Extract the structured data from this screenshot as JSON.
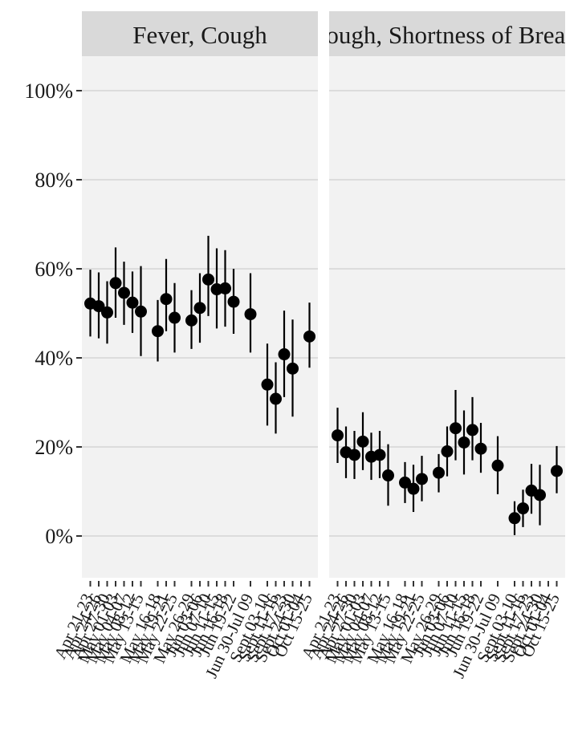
{
  "chart_data": {
    "type": "scatter",
    "title": "",
    "xlabel": "",
    "ylabel": "",
    "ylim": [
      -0.1,
      1.1
    ],
    "yticks": [
      0,
      0.2,
      0.4,
      0.6,
      0.8,
      1.0
    ],
    "ytick_labels": [
      "0%",
      "20%",
      "40%",
      "60%",
      "80%",
      "100%"
    ],
    "grid": true,
    "x_categories": [
      "Apr 21-23",
      "Apr 24-26",
      "Apr 27-30",
      "May 01-03",
      "May 04-07",
      "May 08-12",
      "May 13-15",
      "May 16-18",
      "May 19-21",
      "May 22-25",
      "May 26-29",
      "Jun 03-06",
      "Jun 07-10",
      "Jun 11-15",
      "Jun 16-18",
      "Jun 19-22",
      "Jun 30-Jul 09",
      "Sept 03-10",
      "Sept 11-16",
      "Sept 17-23",
      "Sept 24-30",
      "Oct 01-04",
      "Oct 15-25"
    ],
    "x_positions": [
      1,
      2,
      3,
      4,
      5,
      6,
      7,
      9,
      10,
      11,
      13,
      14,
      15,
      16,
      17,
      18,
      20,
      22,
      23,
      24,
      25,
      26,
      27
    ],
    "x_range": [
      0,
      28
    ],
    "facets": [
      {
        "label": "Fever, Cough",
        "series": [
          {
            "y": [
              0.522,
              0.516,
              0.502,
              0.568,
              0.546,
              0.524,
              0.504,
              0.46,
              0.532,
              0.49,
              0.484,
              0.512,
              0.576,
              0.554,
              0.556,
              0.526,
              0.498,
              0.34,
              0.308,
              0.408,
              0.376,
              0.448
            ],
            "lower": [
              0.448,
              0.444,
              0.432,
              0.49,
              0.474,
              0.456,
              0.404,
              0.392,
              0.46,
              0.412,
              0.42,
              0.434,
              0.494,
              0.466,
              0.47,
              0.454,
              0.412,
              0.248,
              0.23,
              0.312,
              0.268,
              0.378
            ],
            "upper": [
              0.598,
              0.592,
              0.572,
              0.648,
              0.616,
              0.594,
              0.606,
              0.53,
              0.622,
              0.568,
              0.552,
              0.59,
              0.674,
              0.646,
              0.642,
              0.6,
              0.59,
              0.432,
              0.39,
              0.506,
              0.486,
              0.524
            ]
          }
        ],
        "x_index": [
          0,
          1,
          2,
          3,
          4,
          5,
          6,
          7,
          8,
          9,
          10,
          11,
          12,
          13,
          14,
          15,
          16,
          17,
          18,
          19,
          20,
          22
        ]
      },
      {
        "label": "Cough, Shortness of Breath",
        "series": [
          {
            "y": [
              0.226,
              0.188,
              0.182,
              0.212,
              0.178,
              0.182,
              0.136,
              0.12,
              0.106,
              0.128,
              0.142,
              0.19,
              0.242,
              0.21,
              0.238,
              0.196,
              0.158,
              0.04,
              0.062,
              0.102,
              0.092,
              0.146
            ],
            "lower": [
              0.164,
              0.13,
              0.128,
              0.148,
              0.126,
              0.13,
              0.068,
              0.074,
              0.054,
              0.078,
              0.098,
              0.134,
              0.17,
              0.138,
              0.17,
              0.142,
              0.094,
              0.002,
              0.02,
              0.05,
              0.024,
              0.096
            ],
            "upper": [
              0.288,
              0.246,
              0.236,
              0.278,
              0.232,
              0.236,
              0.206,
              0.166,
              0.16,
              0.18,
              0.184,
              0.246,
              0.328,
              0.282,
              0.312,
              0.254,
              0.224,
              0.078,
              0.104,
              0.162,
              0.16,
              0.202
            ]
          }
        ],
        "x_index": [
          0,
          1,
          2,
          3,
          4,
          5,
          6,
          7,
          8,
          9,
          10,
          11,
          12,
          13,
          14,
          15,
          16,
          17,
          18,
          19,
          20,
          22
        ]
      }
    ]
  }
}
